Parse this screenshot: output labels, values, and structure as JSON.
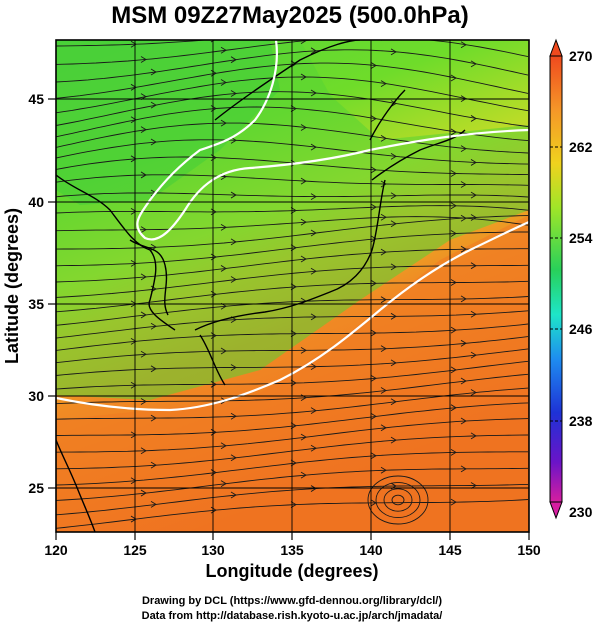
{
  "title": "MSM 09Z27May2025 (500.0hPa)",
  "x_axis": {
    "label": "Longitude (degrees)",
    "ticks": [
      "120",
      "125",
      "130",
      "135",
      "140",
      "145",
      "150"
    ],
    "range": [
      120,
      150
    ]
  },
  "y_axis": {
    "label": "Latitude  (degrees)",
    "ticks": [
      "25",
      "30",
      "35",
      "40",
      "45"
    ],
    "range": [
      22.4,
      47.6
    ]
  },
  "colorbar": {
    "ticks": [
      "270",
      "262",
      "254",
      "246",
      "238",
      "230"
    ],
    "range": [
      230,
      270
    ],
    "colors": [
      "#d61ea0",
      "#3a1ad6",
      "#1e8cf0",
      "#1ee6c8",
      "#28d05a",
      "#a0e628",
      "#f0d21e",
      "#f59628",
      "#f04a1e"
    ]
  },
  "credits": {
    "line1": "Drawing by DCL (https://www.gfd-dennou.org/library/dcl/)",
    "line2": "Data from http://database.rish.kyoto-u.ac.jp/arch/jmadata/"
  },
  "field": {
    "variable": "temperature (K) with wind streamlines",
    "contour_color": "#ffffff",
    "coast_color": "#000000"
  }
}
